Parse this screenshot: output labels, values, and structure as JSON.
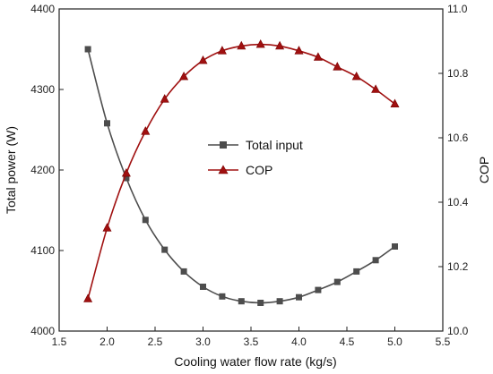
{
  "chart_data": {
    "type": "line",
    "xlabel": "Cooling water flow rate (kg/s)",
    "ylabel_left": "Total power (W)",
    "ylabel_right": "COP",
    "xlim": [
      1.5,
      5.5
    ],
    "ylim_left": [
      4000,
      4400
    ],
    "ylim_right": [
      10.0,
      11.0
    ],
    "x_ticks": [
      "1.5",
      "2.0",
      "2.5",
      "3.0",
      "3.5",
      "4.0",
      "4.5",
      "5.0",
      "5.5"
    ],
    "y_left_ticks": [
      "4000",
      "4100",
      "4200",
      "4300",
      "4400"
    ],
    "y_right_ticks": [
      "10.0",
      "10.2",
      "10.4",
      "10.6",
      "10.8",
      "11.0"
    ],
    "grid": false,
    "legend_position": "center",
    "x": [
      1.8,
      2.0,
      2.2,
      2.4,
      2.6,
      2.8,
      3.0,
      3.2,
      3.4,
      3.6,
      3.8,
      4.0,
      4.2,
      4.4,
      4.6,
      4.8,
      5.0
    ],
    "series": [
      {
        "name": "Total input",
        "axis": "left",
        "marker": "square",
        "color": "#4d4d4d",
        "values": [
          4350,
          4258,
          4190,
          4138,
          4101,
          4074,
          4055,
          4043,
          4037,
          4035,
          4037,
          4042,
          4051,
          4061,
          4074,
          4088,
          4105
        ]
      },
      {
        "name": "COP",
        "axis": "right",
        "marker": "triangle",
        "color": "#a01010",
        "values": [
          10.1,
          10.32,
          10.49,
          10.62,
          10.72,
          10.79,
          10.84,
          10.87,
          10.885,
          10.89,
          10.885,
          10.87,
          10.85,
          10.82,
          10.79,
          10.75,
          10.705
        ]
      }
    ]
  }
}
